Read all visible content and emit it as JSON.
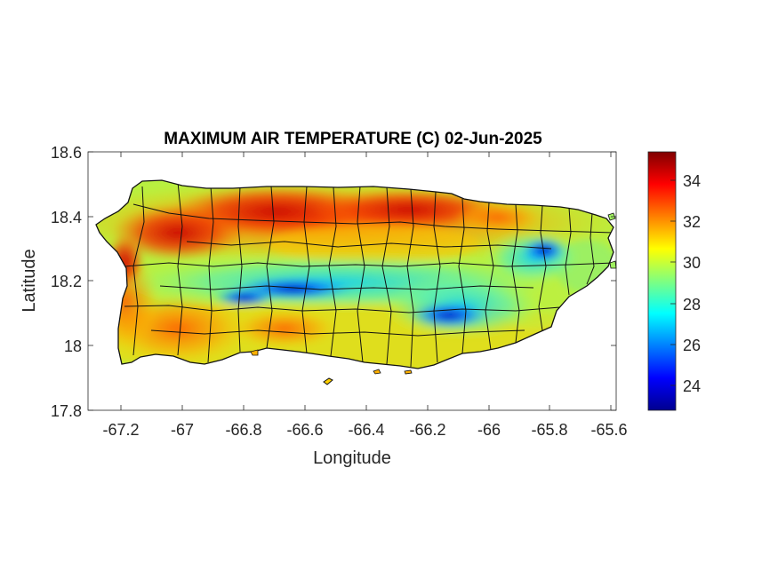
{
  "map": {
    "title": "MAXIMUM AIR TEMPERATURE (C) 02-Jun-2025",
    "xlabel": "Longitude",
    "ylabel": "Latitude",
    "x_ticks": [
      "-67.2",
      "-67",
      "-66.8",
      "-66.6",
      "-66.4",
      "-66.2",
      "-66",
      "-65.8",
      "-65.6"
    ],
    "y_ticks": [
      "18.6",
      "18.4",
      "18.2",
      "18",
      "17.8"
    ],
    "colorbar_ticks": [
      "34",
      "32",
      "30",
      "28",
      "26",
      "24"
    ]
  },
  "chart_data": {
    "type": "heatmap",
    "title": "MAXIMUM AIR TEMPERATURE (C) 02-Jun-2025",
    "xlabel": "Longitude",
    "ylabel": "Latitude",
    "xlim": [
      -67.3,
      -65.59
    ],
    "ylim": [
      17.8,
      18.6
    ],
    "x_ticks": [
      -67.2,
      -67,
      -66.8,
      -66.6,
      -66.4,
      -66.2,
      -66,
      -65.8,
      -65.6
    ],
    "y_ticks": [
      17.8,
      18,
      18.2,
      18.4,
      18.6
    ],
    "colorbar": {
      "colormap": "jet",
      "range": [
        22.8,
        35.4
      ],
      "ticks": [
        24,
        26,
        28,
        30,
        32,
        34
      ]
    },
    "region": "Puerto Rico",
    "grid": false
  }
}
